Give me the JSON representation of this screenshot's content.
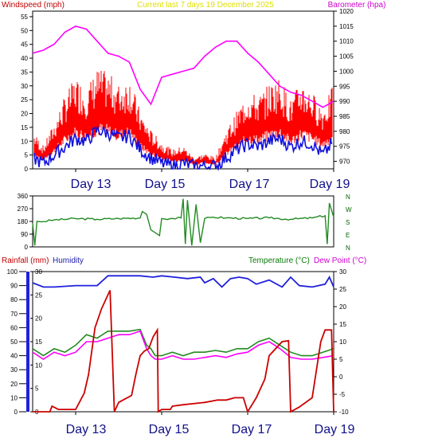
{
  "header": {
    "windspeed_label": "Windspeed (mph)",
    "title": "Current last 7 days 19 December 2025",
    "barometer_label": "Barometer (hpa)"
  },
  "colors": {
    "windspeed": "#e00000",
    "gust": "#ff0000",
    "avg_wind": "#1010dd",
    "barometer": "#ff00ff",
    "title": "#ffff00",
    "direction": "#228b22",
    "rainfall": "#cc0000",
    "humidity": "#2020dd",
    "temperature": "#228b22",
    "dewpoint": "#ff00ff",
    "day_labels": "#10108a",
    "axis_green": "#006400"
  },
  "day_labels": [
    "Day 13",
    "Day 15",
    "Day 17",
    "Day 19"
  ],
  "chart_data": [
    {
      "type": "area",
      "title": "Current last 7 days 19 December 2025",
      "x_range": [
        12,
        19
      ],
      "x_tick_labels": [
        "Day 13",
        "Day 15",
        "Day 17",
        "Day 19"
      ],
      "x_tick_positions": [
        13,
        15,
        17,
        19
      ],
      "ylabel": "Windspeed (mph)",
      "y_ticks": [
        0,
        5,
        10,
        15,
        20,
        25,
        30,
        35,
        40,
        45,
        50,
        55
      ],
      "ylim": [
        0,
        57
      ],
      "y2label": "Barometer (hpa)",
      "y2_ticks": [
        970,
        975,
        980,
        985,
        990,
        995,
        1000,
        1005,
        1010,
        1015,
        1020
      ],
      "y2lim": [
        967.5,
        1020
      ],
      "series": [
        {
          "name": "Windspeed (mph)",
          "axis": "left",
          "x": [
            12.0,
            12.25,
            12.5,
            12.75,
            13.0,
            13.25,
            13.5,
            13.75,
            14.0,
            14.25,
            14.5,
            14.75,
            15.0,
            15.25,
            15.5,
            15.75,
            16.0,
            16.25,
            16.5,
            16.75,
            17.0,
            17.25,
            17.5,
            17.75,
            18.0,
            18.25,
            18.5,
            18.75,
            19.0
          ],
          "values": [
            10,
            6,
            12,
            19,
            24,
            21,
            26,
            25,
            22,
            24,
            15,
            10,
            7,
            5,
            6,
            3,
            4,
            3,
            10,
            15,
            20,
            19,
            22,
            24,
            18,
            23,
            20,
            16,
            22
          ]
        },
        {
          "name": "Avg windspeed",
          "axis": "left",
          "x": [
            12.0,
            12.25,
            12.5,
            12.75,
            13.0,
            13.25,
            13.5,
            13.75,
            14.0,
            14.25,
            14.5,
            14.75,
            15.0,
            15.25,
            15.5,
            15.75,
            16.0,
            16.25,
            16.5,
            16.75,
            17.0,
            17.25,
            17.5,
            17.75,
            18.0,
            18.25,
            18.5,
            18.75,
            19.0
          ],
          "values": [
            4,
            2,
            5,
            8,
            11,
            10,
            14,
            13,
            11,
            12,
            7,
            4,
            2,
            1,
            2,
            1,
            1,
            1,
            4,
            7,
            9,
            8,
            10,
            11,
            8,
            10,
            9,
            5,
            10
          ]
        },
        {
          "name": "Barometer (hpa)",
          "axis": "right",
          "x": [
            12.0,
            12.25,
            12.5,
            12.75,
            13.0,
            13.25,
            13.5,
            13.75,
            14.0,
            14.25,
            14.5,
            14.75,
            15.0,
            15.25,
            15.5,
            15.75,
            16.0,
            16.25,
            16.5,
            16.75,
            17.0,
            17.25,
            17.5,
            17.75,
            18.0,
            18.25,
            18.5,
            18.75,
            19.0
          ],
          "values": [
            1006,
            1007,
            1009,
            1013,
            1015,
            1014,
            1010,
            1006,
            1005,
            1003,
            994,
            989,
            998,
            999,
            1000,
            1001,
            1005,
            1008,
            1010,
            1010,
            1006,
            1003,
            999,
            995,
            993,
            992,
            990,
            988,
            990
          ]
        }
      ]
    },
    {
      "type": "line",
      "x_range": [
        12,
        19
      ],
      "y_ticks": [
        0,
        90,
        180,
        270,
        360
      ],
      "ylim": [
        0,
        360
      ],
      "compass_labels": [
        "N",
        "W",
        "S",
        "E",
        "N"
      ],
      "series": [
        {
          "name": "Wind direction",
          "x": [
            12.0,
            12.05,
            12.1,
            12.2,
            12.5,
            13.0,
            13.5,
            14.0,
            14.5,
            14.55,
            14.65,
            14.75,
            14.85,
            14.95,
            15.0,
            15.2,
            15.45,
            15.5,
            15.55,
            15.6,
            15.7,
            15.8,
            15.9,
            16.0,
            16.2,
            16.5,
            17.0,
            17.5,
            18.0,
            18.5,
            18.8,
            18.85,
            18.9,
            19.0
          ],
          "values": [
            165,
            10,
            180,
            178,
            190,
            200,
            195,
            200,
            205,
            250,
            230,
            120,
            100,
            80,
            200,
            200,
            205,
            340,
            20,
            330,
            10,
            300,
            30,
            200,
            210,
            205,
            200,
            205,
            195,
            205,
            220,
            20,
            310,
            210
          ]
        }
      ]
    },
    {
      "type": "line",
      "x_range": [
        12,
        19
      ],
      "x_tick_labels": [
        "Day 13",
        "Day 15",
        "Day 17",
        "Day 19"
      ],
      "x_tick_positions": [
        13,
        15,
        17,
        19
      ],
      "header_left": "Rainfall (mm)",
      "header_left2": "Humidity",
      "header_right": "Temperature (°C)",
      "header_right2": "Dew Point (°C)",
      "humidity_ticks": [
        0,
        10,
        20,
        30,
        40,
        50,
        60,
        70,
        80,
        90,
        100
      ],
      "humidity_lim": [
        0,
        100
      ],
      "rain_ticks": [
        0,
        5,
        10,
        15,
        20,
        25,
        30
      ],
      "rain_lim": [
        0,
        30
      ],
      "temp_ticks": [
        -10,
        -5,
        0,
        5,
        10,
        15,
        20,
        25,
        30
      ],
      "temp_lim": [
        -10,
        30
      ],
      "series": [
        {
          "name": "Humidity",
          "axis": "humidity",
          "x": [
            12.0,
            12.25,
            12.5,
            13.0,
            13.5,
            13.75,
            14.0,
            14.5,
            14.8,
            15.0,
            15.3,
            15.6,
            15.9,
            16.0,
            16.2,
            16.4,
            16.6,
            16.8,
            17.0,
            17.2,
            17.5,
            17.8,
            18.0,
            18.2,
            18.5,
            18.8,
            18.9,
            19.0
          ],
          "values": [
            92,
            89,
            89,
            90,
            90,
            97,
            97,
            97,
            96,
            97,
            96,
            95,
            96,
            92,
            95,
            89,
            95,
            96,
            95,
            91,
            94,
            89,
            96,
            90,
            89,
            91,
            96,
            89
          ]
        },
        {
          "name": "Temperature (°C)",
          "axis": "temp",
          "x": [
            12.0,
            12.25,
            12.5,
            12.75,
            13.0,
            13.25,
            13.5,
            13.75,
            14.0,
            14.25,
            14.5,
            14.65,
            14.75,
            14.85,
            15.0,
            15.25,
            15.5,
            15.75,
            16.0,
            16.25,
            16.5,
            16.75,
            17.0,
            17.25,
            17.5,
            17.75,
            18.0,
            18.25,
            18.5,
            18.75,
            19.0
          ],
          "values": [
            8,
            6,
            8,
            7,
            9,
            12,
            11,
            13,
            13,
            13,
            13.5,
            9,
            8,
            6,
            6,
            7,
            6,
            7,
            7,
            7.5,
            7,
            8,
            8,
            10,
            11,
            9,
            7,
            6,
            6,
            7,
            8
          ]
        },
        {
          "name": "Dew Point (°C)",
          "axis": "temp",
          "x": [
            12.0,
            12.25,
            12.5,
            12.75,
            13.0,
            13.25,
            13.5,
            13.75,
            14.0,
            14.25,
            14.5,
            14.65,
            14.75,
            14.85,
            15.0,
            15.25,
            15.5,
            15.75,
            16.0,
            16.25,
            16.5,
            16.75,
            17.0,
            17.25,
            17.5,
            17.75,
            18.0,
            18.25,
            18.5,
            18.75,
            19.0
          ],
          "values": [
            7,
            5,
            7,
            6,
            7,
            10,
            10,
            11,
            12,
            12,
            13,
            8,
            6,
            5,
            5,
            6,
            5,
            5,
            5.5,
            6,
            5.5,
            6.5,
            7,
            9,
            10,
            8,
            5.5,
            5,
            5,
            5.5,
            6
          ]
        },
        {
          "name": "Rainfall (mm)",
          "axis": "rain",
          "x": [
            12.0,
            12.4,
            12.45,
            12.6,
            13.0,
            13.2,
            13.3,
            13.45,
            13.6,
            13.75,
            13.8,
            13.9,
            14.0,
            14.1,
            14.3,
            14.4,
            14.5,
            14.6,
            14.7,
            14.8,
            14.9,
            14.92,
            15.0,
            15.2,
            15.25,
            15.5,
            16.0,
            16.3,
            16.5,
            16.7,
            16.9,
            17.0,
            17.2,
            17.4,
            17.5,
            17.8,
            17.95,
            18.0,
            18.2,
            18.5,
            18.7,
            18.8,
            18.95,
            19.0
          ],
          "values": [
            0,
            0,
            1.2,
            0.5,
            0.5,
            4,
            8,
            18,
            22,
            25,
            26,
            0,
            2,
            2.5,
            3.5,
            8,
            12,
            13,
            13.5,
            16,
            17.5,
            0,
            0.5,
            0.5,
            1.2,
            1.5,
            2,
            2.5,
            2.5,
            3,
            3,
            0,
            3,
            7,
            12,
            15,
            15.2,
            0,
            1,
            3,
            15,
            17.5,
            17.5,
            0
          ]
        }
      ]
    }
  ]
}
